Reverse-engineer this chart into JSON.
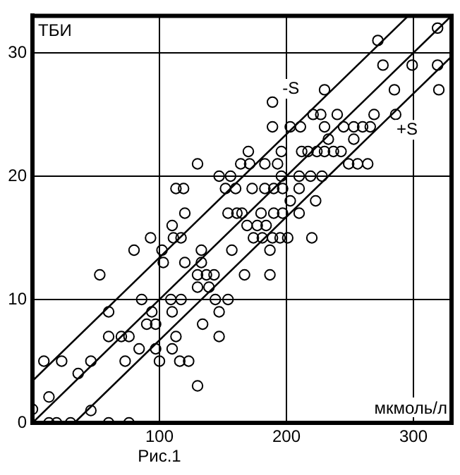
{
  "chart_data": {
    "type": "scatter",
    "xlabel": "мкмоль/л",
    "ylabel": "ТБИ",
    "annotations": [
      "Рис.1"
    ],
    "xlim": [
      0,
      330
    ],
    "ylim": [
      0,
      33
    ],
    "xticks": [
      100,
      200,
      300
    ],
    "yticks": [
      0,
      10,
      20,
      30
    ],
    "grid": true,
    "legend": false,
    "series": [
      {
        "marker": "circle",
        "color": "#000000",
        "x": [
          13,
          19,
          30,
          60,
          76,
          0,
          46,
          13,
          130,
          36,
          9,
          23,
          46,
          73,
          100,
          116,
          123,
          84,
          97,
          110,
          60,
          70,
          76,
          113,
          147,
          90,
          97,
          134,
          60,
          94,
          110,
          147,
          86,
          109,
          117,
          144,
          154,
          130,
          139,
          53,
          130,
          137,
          143,
          167,
          187,
          103,
          120,
          133,
          80,
          102,
          133,
          157,
          187,
          93,
          111,
          117,
          174,
          181,
          189,
          195,
          201,
          220,
          110,
          169,
          177,
          184,
          120,
          154,
          161,
          165,
          180,
          190,
          197,
          210,
          203,
          223,
          113,
          119,
          152,
          160,
          173,
          183,
          190,
          197,
          210,
          147,
          156,
          196,
          210,
          219,
          228,
          130,
          164,
          171,
          183,
          193,
          249,
          256,
          264,
          170,
          196,
          212,
          217,
          224,
          230,
          237,
          243,
          233,
          253,
          189,
          203,
          211,
          230,
          245,
          253,
          260,
          266,
          221,
          227,
          240,
          269,
          286,
          189,
          230,
          285,
          320,
          276,
          299,
          319,
          272,
          319
        ],
        "values": [
          0,
          0,
          0,
          0,
          0,
          1.1,
          1,
          2.1,
          3,
          4,
          5,
          5,
          5,
          5,
          5,
          5,
          5,
          6,
          6,
          6,
          7,
          7,
          7,
          7,
          7,
          8,
          8,
          8,
          9,
          9,
          9,
          9,
          10,
          10,
          10,
          10,
          10,
          11,
          11,
          12,
          12,
          12,
          12,
          12,
          12,
          13,
          13,
          13,
          14,
          14,
          14,
          14,
          14,
          15,
          15,
          15,
          15,
          15,
          15,
          15,
          15,
          15,
          16,
          16,
          16,
          16,
          17,
          17,
          17,
          17,
          17,
          17,
          17,
          17,
          18,
          18,
          19,
          19,
          19,
          19,
          19,
          19,
          19,
          19,
          19,
          20,
          20,
          20,
          20,
          20,
          20,
          21,
          21,
          21,
          21,
          21,
          21,
          21,
          21,
          22,
          22,
          22,
          22,
          22,
          22,
          22,
          22,
          23,
          23,
          24,
          24,
          24,
          24,
          24,
          24,
          24,
          24,
          25,
          25,
          25,
          25,
          25,
          26,
          27,
          27,
          27,
          29,
          29,
          29,
          31,
          32
        ]
      },
      {
        "type": "line",
        "color": "#000000",
        "x": [
          0,
          330
        ],
        "values": [
          0,
          33
        ]
      },
      {
        "type": "line",
        "name": "-S",
        "color": "#000000",
        "x": [
          0,
          296
        ],
        "values": [
          3.4,
          33
        ]
      },
      {
        "type": "line",
        "name": "+S",
        "color": "#000000",
        "x": [
          33,
          330
        ],
        "values": [
          0,
          29.7
        ]
      }
    ]
  }
}
